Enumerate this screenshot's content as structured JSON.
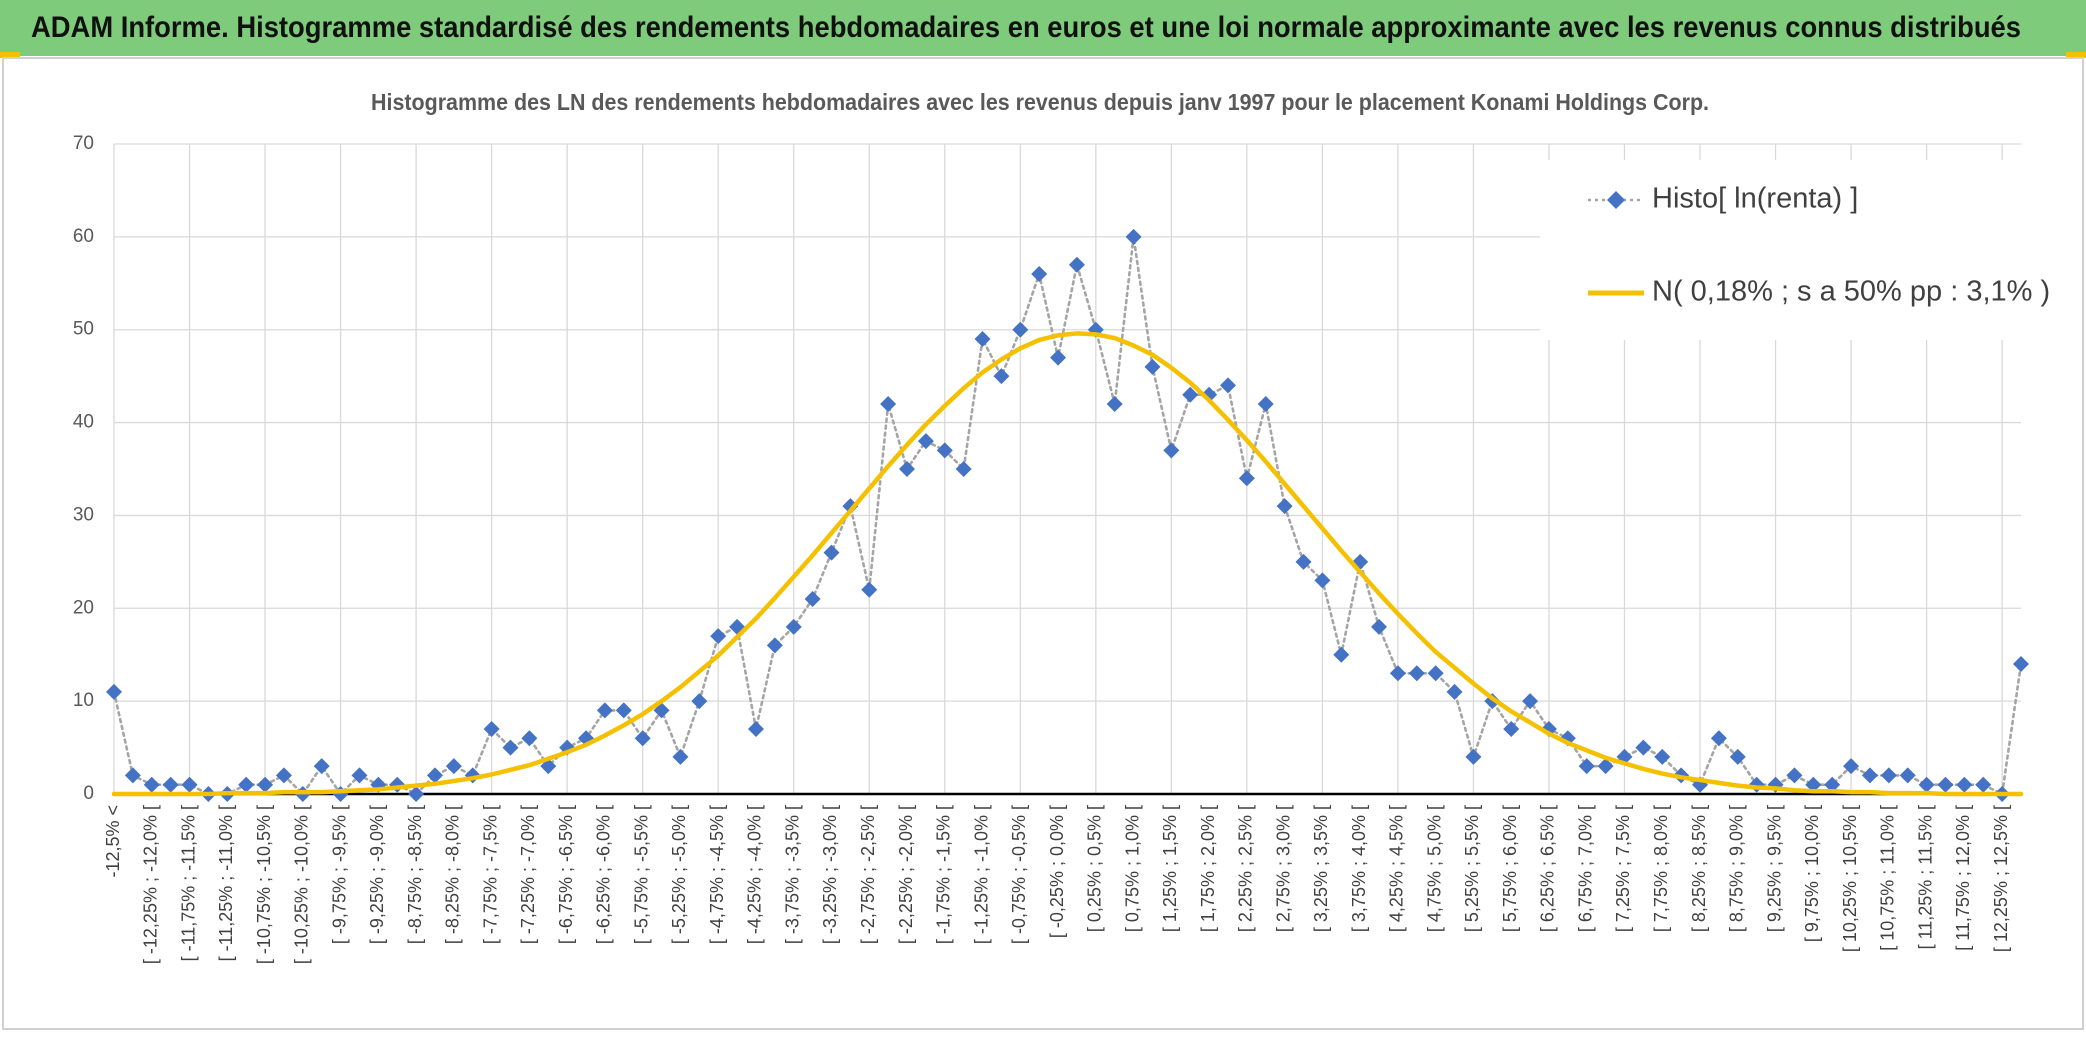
{
  "chart_data": {
    "type": "line",
    "title": "ADAM Informe. Histogramme standardisé des rendements hebdomadaires en euros et une loi normale approximante avec les revenus connus distribués",
    "subtitle": "Histogramme des LN des rendements hebdomadaires avec les revenus depuis janv 1997 pour le placement Konami Holdings Corp.",
    "categories": [
      "-12,5% <",
      null,
      "[ -12,25% ; -12,0% [",
      null,
      "[ -11,75% ; -11,5% [",
      null,
      "[ -11,25% ; -11,0% [",
      null,
      "[ -10,75% ; -10,5% [",
      null,
      "[ -10,25% ; -10,0% [",
      null,
      "[ -9,75% ; -9,5% [",
      null,
      "[ -9,25% ; -9,0% [",
      null,
      "[ -8,75% ; -8,5% [",
      null,
      "[ -8,25% ; -8,0% [",
      null,
      "[ -7,75% ; -7,5% [",
      null,
      "[ -7,25% ; -7,0% [",
      null,
      "[ -6,75% ; -6,5% [",
      null,
      "[ -6,25% ; -6,0% [",
      null,
      "[ -5,75% ; -5,5% [",
      null,
      "[ -5,25% ; -5,0% [",
      null,
      "[ -4,75% ; -4,5% [",
      null,
      "[ -4,25% ; -4,0% [",
      null,
      "[ -3,75% ; -3,5% [",
      null,
      "[ -3,25% ; -3,0% [",
      null,
      "[ -2,75% ; -2,5% [",
      null,
      "[ -2,25% ; -2,0% [",
      null,
      "[ -1,75% ; -1,5% [",
      null,
      "[ -1,25% ; -1,0% [",
      null,
      "[ -0,75% ; -0,5% [",
      null,
      "[ -0,25% ; 0,0% [",
      null,
      "[ 0,25% ; 0,5% [",
      null,
      "[ 0,75% ; 1,0% [",
      null,
      "[ 1,25% ; 1,5% [",
      null,
      "[ 1,75% ; 2,0% [",
      null,
      "[ 2,25% ; 2,5% [",
      null,
      "[ 2,75% ; 3,0% [",
      null,
      "[ 3,25% ; 3,5% [",
      null,
      "[ 3,75% ; 4,0% [",
      null,
      "[ 4,25% ; 4,5% [",
      null,
      "[ 4,75% ; 5,0% [",
      null,
      "[ 5,25% ; 5,5% [",
      null,
      "[ 5,75% ; 6,0% [",
      null,
      "[ 6,25% ; 6,5% [",
      null,
      "[ 6,75% ; 7,0% [",
      null,
      "[ 7,25% ; 7,5% [",
      null,
      "[ 7,75% ; 8,0% [",
      null,
      "[ 8,25% ; 8,5% [",
      null,
      "[ 8,75% ; 9,0% [",
      null,
      "[ 9,25% ; 9,5% [",
      null,
      "[ 9,75% ; 10,0% [",
      null,
      "[ 10,25% ; 10,5% [",
      null,
      "[ 10,75% ; 11,0% [",
      null,
      "[ 11,25% ; 11,5% [",
      null,
      "[ 11,75% ; 12,0% [",
      null,
      "[ 12,25% ; 12,5% [",
      null
    ],
    "series": [
      {
        "name": "Histo[ ln(renta) ]",
        "color": "#4472c4",
        "line_color": "#a5a5a5",
        "line": "dotted",
        "marker": "diamond",
        "values": [
          11,
          2,
          1,
          1,
          1,
          0,
          0,
          1,
          1,
          2,
          0,
          3,
          0,
          2,
          1,
          1,
          0,
          2,
          3,
          2,
          7,
          5,
          6,
          3,
          5,
          6,
          9,
          9,
          6,
          9,
          4,
          10,
          17,
          18,
          7,
          16,
          18,
          21,
          26,
          31,
          22,
          42,
          35,
          38,
          37,
          35,
          49,
          45,
          50,
          56,
          47,
          57,
          50,
          42,
          60,
          46,
          37,
          43,
          43,
          44,
          34,
          42,
          31,
          25,
          23,
          15,
          25,
          18,
          13,
          13,
          13,
          11,
          4,
          10,
          7,
          10,
          7,
          6,
          3,
          3,
          4,
          5,
          4,
          2,
          1,
          6,
          4,
          1,
          1,
          2,
          1,
          1,
          3,
          2,
          2,
          2,
          1,
          1,
          1,
          1,
          0,
          14
        ]
      },
      {
        "name": "N( 0,18% ; s a 50% pp : 3,1% )",
        "color": "#f5c000",
        "line": "solid",
        "values": [
          0.0,
          0.0,
          0.0,
          0.0,
          0.0,
          0.0,
          0.1,
          0.1,
          0.1,
          0.2,
          0.2,
          0.2,
          0.3,
          0.4,
          0.5,
          0.7,
          0.9,
          1.1,
          1.4,
          1.7,
          2.1,
          2.6,
          3.1,
          3.8,
          4.5,
          5.3,
          6.3,
          7.4,
          8.6,
          10.0,
          11.5,
          13.2,
          14.9,
          16.9,
          18.9,
          21.1,
          23.4,
          25.7,
          28.1,
          30.5,
          32.9,
          35.3,
          37.6,
          39.8,
          41.8,
          43.7,
          45.4,
          46.8,
          48.0,
          48.9,
          49.4,
          49.6,
          49.5,
          49.1,
          48.3,
          47.3,
          45.9,
          44.3,
          42.4,
          40.3,
          38.1,
          35.8,
          33.4,
          31.0,
          28.6,
          26.2,
          23.9,
          21.6,
          19.4,
          17.3,
          15.3,
          13.6,
          11.9,
          10.3,
          8.9,
          7.7,
          6.5,
          5.5,
          4.7,
          3.9,
          3.3,
          2.7,
          2.2,
          1.8,
          1.5,
          1.2,
          0.9,
          0.7,
          0.6,
          0.4,
          0.3,
          0.3,
          0.2,
          0.2,
          0.1,
          0.1,
          0.1,
          0.0,
          0.0,
          0.0,
          0.0,
          0.0
        ]
      }
    ],
    "ylim": [
      0,
      70
    ],
    "yticks": [
      0,
      10,
      20,
      30,
      40,
      50,
      60,
      70
    ],
    "grid": true,
    "legend": "top-right"
  }
}
